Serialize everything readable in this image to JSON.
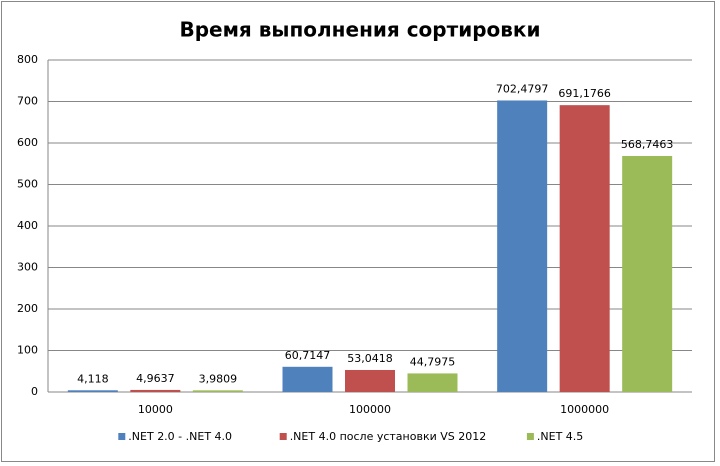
{
  "chart_data": {
    "type": "bar",
    "title": "Время выполнения сортировки",
    "categories": [
      "10000",
      "100000",
      "1000000"
    ],
    "series": [
      {
        "name": ".NET 2.0 - .NET 4.0",
        "color": "#4f81bd",
        "values": [
          4.118,
          60.7147,
          702.4797
        ],
        "value_labels": [
          "4,118",
          "60,7147",
          "702,4797"
        ]
      },
      {
        "name": ".NET 4.0 после установки VS 2012",
        "color": "#c0504d",
        "values": [
          4.9637,
          53.0418,
          691.1766
        ],
        "value_labels": [
          "4,9637",
          "53,0418",
          "691,1766"
        ]
      },
      {
        "name": ".NET 4.5",
        "color": "#9bbb59",
        "values": [
          3.9809,
          44.7975,
          568.7463
        ],
        "value_labels": [
          "3,9809",
          "44,7975",
          "568,7463"
        ]
      }
    ],
    "ylim": [
      0,
      800
    ],
    "yticks": [
      0,
      100,
      200,
      300,
      400,
      500,
      600,
      700,
      800
    ],
    "grid": true,
    "legend": "bottom"
  }
}
